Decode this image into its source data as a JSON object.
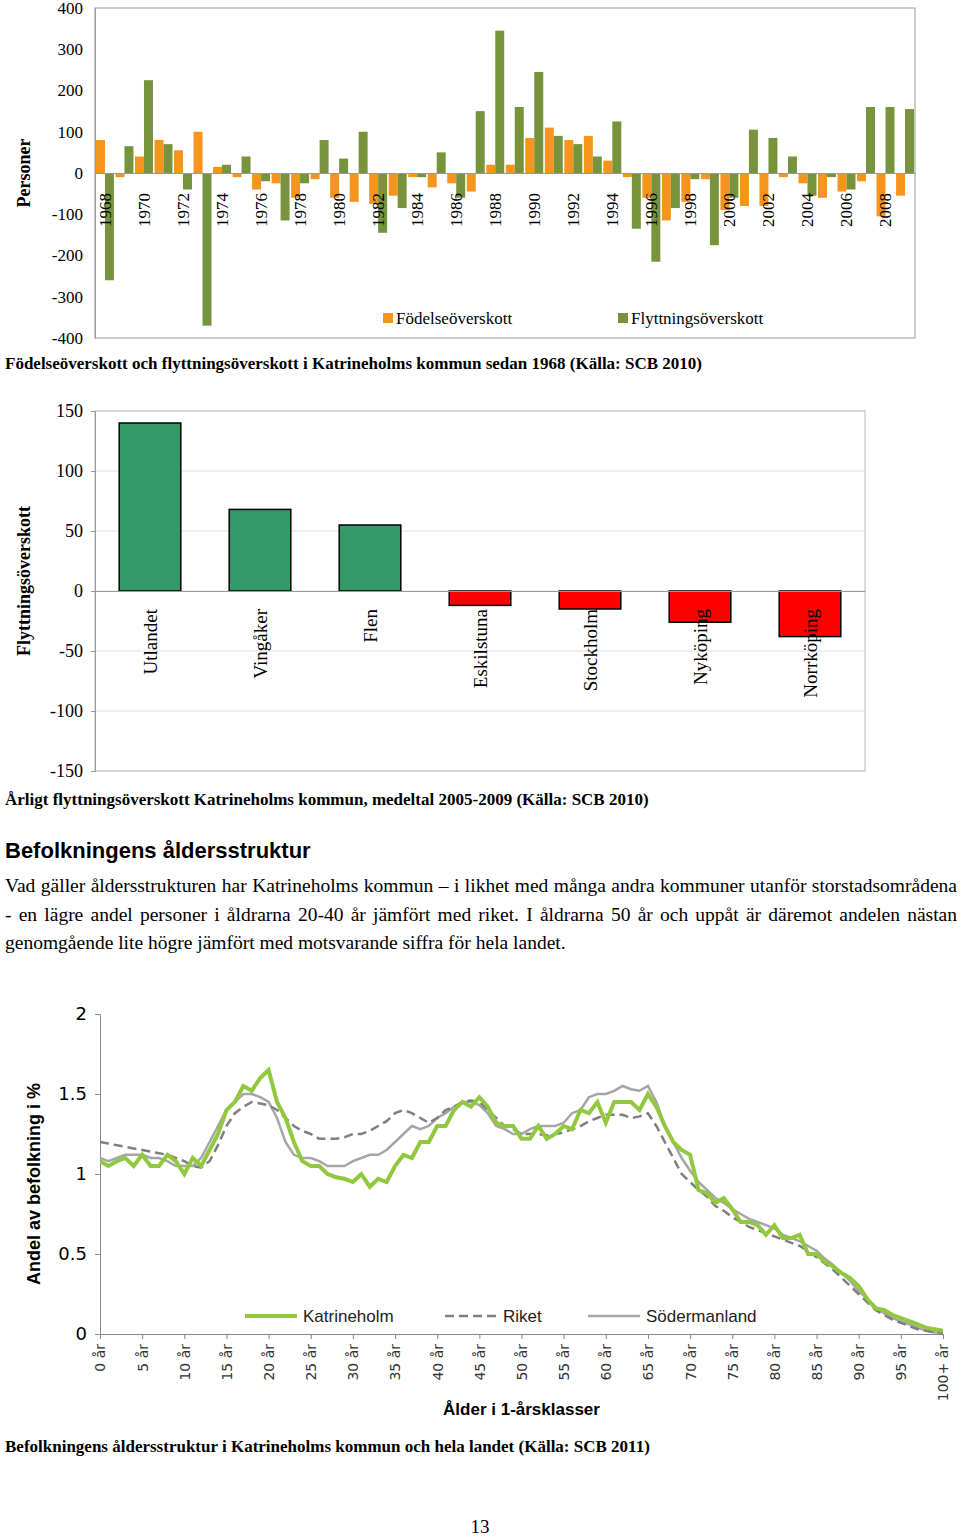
{
  "chart_data": [
    {
      "type": "bar",
      "title": "Födelseöverskott och flyttningsöverskott i Katrineholms kommun sedan 1968 (Källa: SCB 2010)",
      "y_label": "Personer",
      "categories": [
        "1968",
        null,
        "1970",
        null,
        "1972",
        null,
        "1974",
        null,
        "1976",
        null,
        "1978",
        null,
        "1980",
        null,
        "1982",
        null,
        "1984",
        null,
        "1986",
        null,
        "1988",
        null,
        "1990",
        null,
        "1992",
        null,
        "1994",
        null,
        "1996",
        null,
        "1998",
        null,
        "2000",
        null,
        "2002",
        null,
        "2004",
        null,
        "2006",
        null,
        "2008",
        null
      ],
      "series": [
        {
          "name": "Födelseöverskott",
          "color": "#F7941E",
          "values": [
            80,
            -10,
            40,
            80,
            55,
            100,
            15,
            -10,
            -40,
            -25,
            -60,
            -15,
            -60,
            -70,
            -75,
            -55,
            -10,
            -35,
            -25,
            -45,
            20,
            20,
            85,
            110,
            80,
            90,
            30,
            -10,
            -60,
            -115,
            -70,
            -15,
            -90,
            -80,
            -80,
            -10,
            -25,
            -60,
            -45,
            -20,
            -105,
            -55
          ]
        },
        {
          "name": "Flyttningsöverskott",
          "color": "#77933C",
          "values": [
            -260,
            65,
            225,
            70,
            -40,
            -370,
            20,
            40,
            -20,
            -115,
            -25,
            80,
            35,
            100,
            -145,
            -85,
            -10,
            50,
            -60,
            150,
            345,
            160,
            245,
            90,
            70,
            40,
            125,
            -135,
            -215,
            -85,
            -15,
            -175,
            -60,
            105,
            85,
            40,
            -55,
            -10,
            -40,
            160,
            160,
            155
          ]
        }
      ],
      "ylim": [
        -400,
        400
      ],
      "yticks": [
        -400,
        -300,
        -200,
        -100,
        0,
        100,
        200,
        300,
        400
      ],
      "grid": false,
      "legend": "bottom"
    },
    {
      "type": "bar",
      "title": "Årligt flyttningsöverskott Katrineholms kommun, medeltal 2005-2009 (Källa: SCB 2010)",
      "y_label": "Flyttningsöverskott",
      "categories": [
        "Utlandet",
        "Vingåker",
        "Flen",
        "Eskilstuna",
        "Stockholm",
        "Nyköping",
        "Norrköping"
      ],
      "values": [
        140,
        68,
        55,
        -12,
        -15,
        -26,
        -38
      ],
      "colors": [
        "#339966",
        "#339966",
        "#339966",
        "#FF0000",
        "#FF0000",
        "#FF0000",
        "#FF0000"
      ],
      "ylim": [
        -150,
        150
      ],
      "yticks": [
        -150,
        -100,
        -50,
        0,
        50,
        100,
        150
      ],
      "grid": true
    },
    {
      "type": "line",
      "title": "Befolkningens åldersstruktur i Katrineholms kommun och hela landet (Källa: SCB 2011)",
      "x_label": "Ålder i 1-årsklasser",
      "y_label": "Andel av befolkning i %",
      "x": [
        0,
        1,
        2,
        3,
        4,
        5,
        6,
        7,
        8,
        9,
        10,
        11,
        12,
        13,
        14,
        15,
        16,
        17,
        18,
        19,
        20,
        21,
        22,
        23,
        24,
        25,
        26,
        27,
        28,
        29,
        30,
        31,
        32,
        33,
        34,
        35,
        36,
        37,
        38,
        39,
        40,
        41,
        42,
        43,
        44,
        45,
        46,
        47,
        48,
        49,
        50,
        51,
        52,
        53,
        54,
        55,
        56,
        57,
        58,
        59,
        60,
        61,
        62,
        63,
        64,
        65,
        66,
        67,
        68,
        69,
        70,
        71,
        72,
        73,
        74,
        75,
        76,
        77,
        78,
        79,
        80,
        81,
        82,
        83,
        84,
        85,
        86,
        87,
        88,
        89,
        90,
        91,
        92,
        93,
        94,
        95,
        96,
        97,
        98,
        99,
        100
      ],
      "series": [
        {
          "name": "Katrineholm",
          "color": "#92C83E",
          "line_style": "solid",
          "values": [
            1.08,
            1.05,
            1.08,
            1.1,
            1.05,
            1.12,
            1.05,
            1.05,
            1.12,
            1.08,
            1.0,
            1.1,
            1.05,
            1.15,
            1.25,
            1.4,
            1.45,
            1.55,
            1.52,
            1.6,
            1.65,
            1.45,
            1.35,
            1.2,
            1.08,
            1.05,
            1.05,
            1.0,
            0.98,
            0.97,
            0.95,
            1.0,
            0.92,
            0.97,
            0.95,
            1.05,
            1.12,
            1.1,
            1.2,
            1.2,
            1.3,
            1.3,
            1.4,
            1.45,
            1.42,
            1.48,
            1.42,
            1.32,
            1.3,
            1.3,
            1.22,
            1.22,
            1.3,
            1.22,
            1.25,
            1.3,
            1.28,
            1.4,
            1.38,
            1.45,
            1.32,
            1.45,
            1.45,
            1.45,
            1.4,
            1.5,
            1.42,
            1.3,
            1.2,
            1.15,
            1.12,
            0.9,
            0.88,
            0.82,
            0.85,
            0.78,
            0.7,
            0.7,
            0.68,
            0.62,
            0.68,
            0.6,
            0.6,
            0.62,
            0.5,
            0.5,
            0.45,
            0.42,
            0.38,
            0.35,
            0.3,
            0.22,
            0.16,
            0.15,
            0.12,
            0.1,
            0.08,
            0.06,
            0.04,
            0.03,
            0.02
          ]
        },
        {
          "name": "Riket",
          "color": "#7F7F7F",
          "line_style": "dashed",
          "values": [
            1.2,
            1.19,
            1.18,
            1.17,
            1.16,
            1.15,
            1.14,
            1.13,
            1.12,
            1.1,
            1.08,
            1.05,
            1.04,
            1.08,
            1.18,
            1.3,
            1.38,
            1.42,
            1.45,
            1.44,
            1.43,
            1.4,
            1.35,
            1.3,
            1.27,
            1.25,
            1.22,
            1.22,
            1.22,
            1.23,
            1.25,
            1.25,
            1.27,
            1.3,
            1.33,
            1.38,
            1.4,
            1.38,
            1.35,
            1.32,
            1.35,
            1.4,
            1.42,
            1.45,
            1.46,
            1.45,
            1.4,
            1.35,
            1.3,
            1.28,
            1.25,
            1.25,
            1.25,
            1.24,
            1.25,
            1.26,
            1.28,
            1.3,
            1.33,
            1.35,
            1.37,
            1.37,
            1.37,
            1.35,
            1.36,
            1.38,
            1.3,
            1.2,
            1.1,
            1.0,
            0.95,
            0.9,
            0.86,
            0.8,
            0.77,
            0.73,
            0.7,
            0.67,
            0.65,
            0.63,
            0.61,
            0.59,
            0.57,
            0.55,
            0.52,
            0.48,
            0.44,
            0.4,
            0.35,
            0.3,
            0.25,
            0.2,
            0.15,
            0.12,
            0.09,
            0.07,
            0.05,
            0.03,
            0.02,
            0.01,
            0.01
          ]
        },
        {
          "name": "Södermanland",
          "color": "#A6A6A6",
          "line_style": "solid",
          "values": [
            1.1,
            1.08,
            1.1,
            1.12,
            1.12,
            1.12,
            1.1,
            1.1,
            1.08,
            1.05,
            1.05,
            1.05,
            1.1,
            1.2,
            1.3,
            1.4,
            1.45,
            1.5,
            1.5,
            1.48,
            1.45,
            1.35,
            1.2,
            1.12,
            1.1,
            1.1,
            1.08,
            1.05,
            1.05,
            1.05,
            1.08,
            1.1,
            1.12,
            1.12,
            1.15,
            1.2,
            1.25,
            1.3,
            1.28,
            1.3,
            1.35,
            1.38,
            1.42,
            1.45,
            1.45,
            1.43,
            1.38,
            1.3,
            1.28,
            1.25,
            1.25,
            1.28,
            1.3,
            1.3,
            1.3,
            1.32,
            1.38,
            1.4,
            1.48,
            1.5,
            1.5,
            1.52,
            1.55,
            1.53,
            1.52,
            1.55,
            1.45,
            1.3,
            1.2,
            1.1,
            1.02,
            0.95,
            0.9,
            0.85,
            0.82,
            0.78,
            0.75,
            0.72,
            0.7,
            0.68,
            0.66,
            0.62,
            0.6,
            0.58,
            0.55,
            0.52,
            0.47,
            0.43,
            0.38,
            0.33,
            0.27,
            0.22,
            0.17,
            0.13,
            0.1,
            0.08,
            0.06,
            0.04,
            0.02,
            0.01,
            0.01
          ]
        }
      ],
      "xlim": [
        0,
        100
      ],
      "xticks": [
        {
          "value": 0,
          "label": "0 år"
        },
        {
          "value": 5,
          "label": "5 år"
        },
        {
          "value": 10,
          "label": "10 år"
        },
        {
          "value": 15,
          "label": "15 år"
        },
        {
          "value": 20,
          "label": "20 år"
        },
        {
          "value": 25,
          "label": "25 år"
        },
        {
          "value": 30,
          "label": "30 år"
        },
        {
          "value": 35,
          "label": "35 år"
        },
        {
          "value": 40,
          "label": "40 år"
        },
        {
          "value": 45,
          "label": "45 år"
        },
        {
          "value": 50,
          "label": "50 år"
        },
        {
          "value": 55,
          "label": "55 år"
        },
        {
          "value": 60,
          "label": "60 år"
        },
        {
          "value": 65,
          "label": "65 år"
        },
        {
          "value": 70,
          "label": "70 år"
        },
        {
          "value": 75,
          "label": "75 år"
        },
        {
          "value": 80,
          "label": "80 år"
        },
        {
          "value": 85,
          "label": "85 år"
        },
        {
          "value": 90,
          "label": "90 år"
        },
        {
          "value": 95,
          "label": "95 år"
        },
        {
          "value": 100,
          "label": "100+ år"
        }
      ],
      "ylim": [
        0,
        2
      ],
      "yticks": [
        0,
        0.5,
        1,
        1.5,
        2
      ],
      "grid": false,
      "legend": "bottom"
    }
  ],
  "page": {
    "heading": "Befolkningens åldersstruktur",
    "paragraph": "Vad gäller åldersstrukturen har Katrineholms kommun – i likhet med många andra kommuner utanför storstadsområdena - en lägre andel personer i åldrarna 20-40 år jämfört med riket. I åldrarna 50 år och uppåt är däremot andelen nästan genomgående lite högre jämfört med motsvarande siffra för hela landet.",
    "page_number": "13"
  }
}
